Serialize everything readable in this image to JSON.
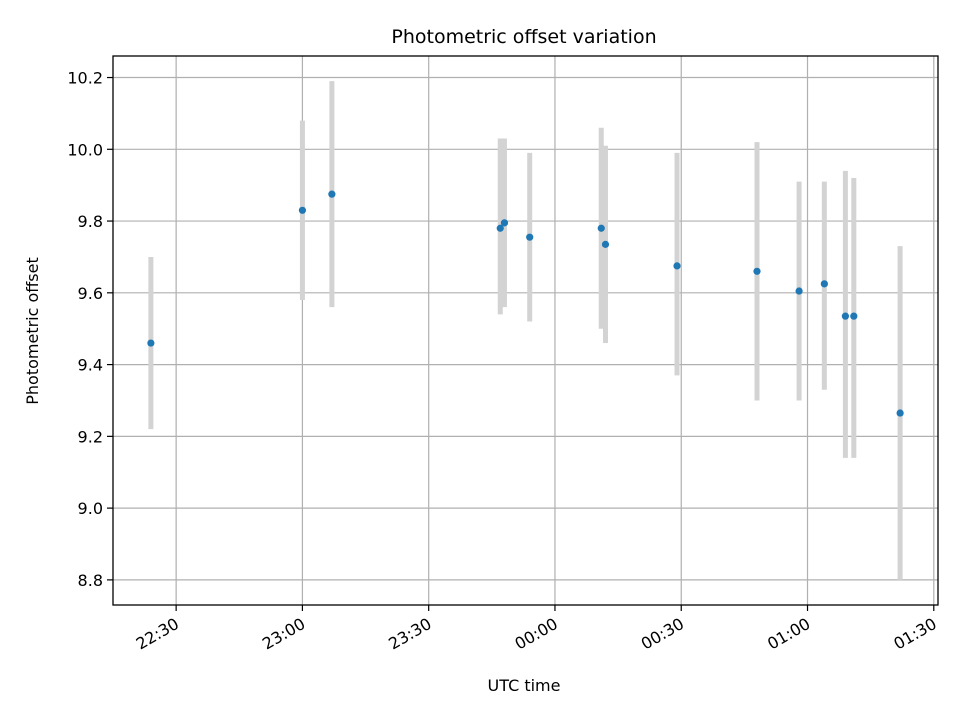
{
  "chart_data": {
    "type": "scatter",
    "title": "Photometric offset variation",
    "xlabel": "UTC time",
    "ylabel": "Photometric offset",
    "xlim": [
      "22:15",
      "01:31"
    ],
    "ylim": [
      8.73,
      10.26
    ],
    "grid": true,
    "x_ticks": [
      {
        "time": "22:30",
        "label": "22:30"
      },
      {
        "time": "23:00",
        "label": "23:00"
      },
      {
        "time": "23:30",
        "label": "23:30"
      },
      {
        "time": "00:00",
        "label": "00:00"
      },
      {
        "time": "00:30",
        "label": "00:30"
      },
      {
        "time": "01:00",
        "label": "01:00"
      },
      {
        "time": "01:30",
        "label": "01:30"
      }
    ],
    "y_ticks": [
      8.8,
      9.0,
      9.2,
      9.4,
      9.6,
      9.8,
      10.0,
      10.2
    ],
    "y_tick_labels": [
      "8.8",
      "9.0",
      "9.2",
      "9.4",
      "9.6",
      "9.8",
      "10.0",
      "10.2"
    ],
    "series": [
      {
        "points": [
          {
            "x": "22:24",
            "y": 9.46,
            "low": 9.22,
            "high": 9.7
          },
          {
            "x": "23:00",
            "y": 9.83,
            "low": 9.58,
            "high": 10.08
          },
          {
            "x": "23:07",
            "y": 9.875,
            "low": 9.56,
            "high": 10.19
          },
          {
            "x": "23:47",
            "y": 9.78,
            "low": 9.54,
            "high": 10.03
          },
          {
            "x": "23:48",
            "y": 9.795,
            "low": 9.56,
            "high": 10.03
          },
          {
            "x": "23:54",
            "y": 9.755,
            "low": 9.52,
            "high": 9.99
          },
          {
            "x": "00:11",
            "y": 9.78,
            "low": 9.5,
            "high": 10.06
          },
          {
            "x": "00:12",
            "y": 9.735,
            "low": 9.46,
            "high": 10.01
          },
          {
            "x": "00:29",
            "y": 9.675,
            "low": 9.37,
            "high": 9.99
          },
          {
            "x": "00:48",
            "y": 9.66,
            "low": 9.3,
            "high": 10.02
          },
          {
            "x": "00:58",
            "y": 9.605,
            "low": 9.3,
            "high": 9.91
          },
          {
            "x": "01:04",
            "y": 9.625,
            "low": 9.33,
            "high": 9.91
          },
          {
            "x": "01:09",
            "y": 9.535,
            "low": 9.14,
            "high": 9.94
          },
          {
            "x": "01:11",
            "y": 9.535,
            "low": 9.14,
            "high": 9.92
          },
          {
            "x": "01:22",
            "y": 9.265,
            "low": 8.8,
            "high": 9.73
          }
        ]
      }
    ],
    "colors": {
      "points": "#1f77b4",
      "errorbars": "#d3d3d3",
      "grid": "#b0b0b0"
    }
  }
}
